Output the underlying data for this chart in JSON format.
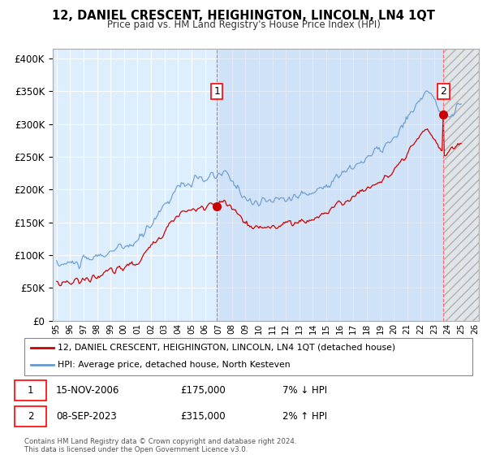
{
  "title": "12, DANIEL CRESCENT, HEIGHINGTON, LINCOLN, LN4 1QT",
  "subtitle": "Price paid vs. HM Land Registry's House Price Index (HPI)",
  "background_color": "#ffffff",
  "plot_bg_color": "#ddeeff",
  "ylabel_vals": [
    0,
    50000,
    100000,
    150000,
    200000,
    250000,
    300000,
    350000,
    400000
  ],
  "ylim": [
    0,
    415000
  ],
  "xlim_start": 1994.7,
  "xlim_end": 2026.3,
  "grid_color": "#ffffff",
  "sale1_date": "15-NOV-2006",
  "sale1_price": "£175,000",
  "sale1_pct": "7% ↓ HPI",
  "sale2_date": "08-SEP-2023",
  "sale2_price": "£315,000",
  "sale2_pct": "2% ↑ HPI",
  "legend_label1": "12, DANIEL CRESCENT, HEIGHINGTON, LINCOLN, LN4 1QT (detached house)",
  "legend_label2": "HPI: Average price, detached house, North Kesteven",
  "footnote": "Contains HM Land Registry data © Crown copyright and database right 2024.\nThis data is licensed under the Open Government Licence v3.0.",
  "red_line_color": "#cc0000",
  "blue_line_color": "#6699cc",
  "marker1_x": 2006.88,
  "marker2_x": 2023.69,
  "marker1_y": 175000,
  "marker2_y": 315000
}
